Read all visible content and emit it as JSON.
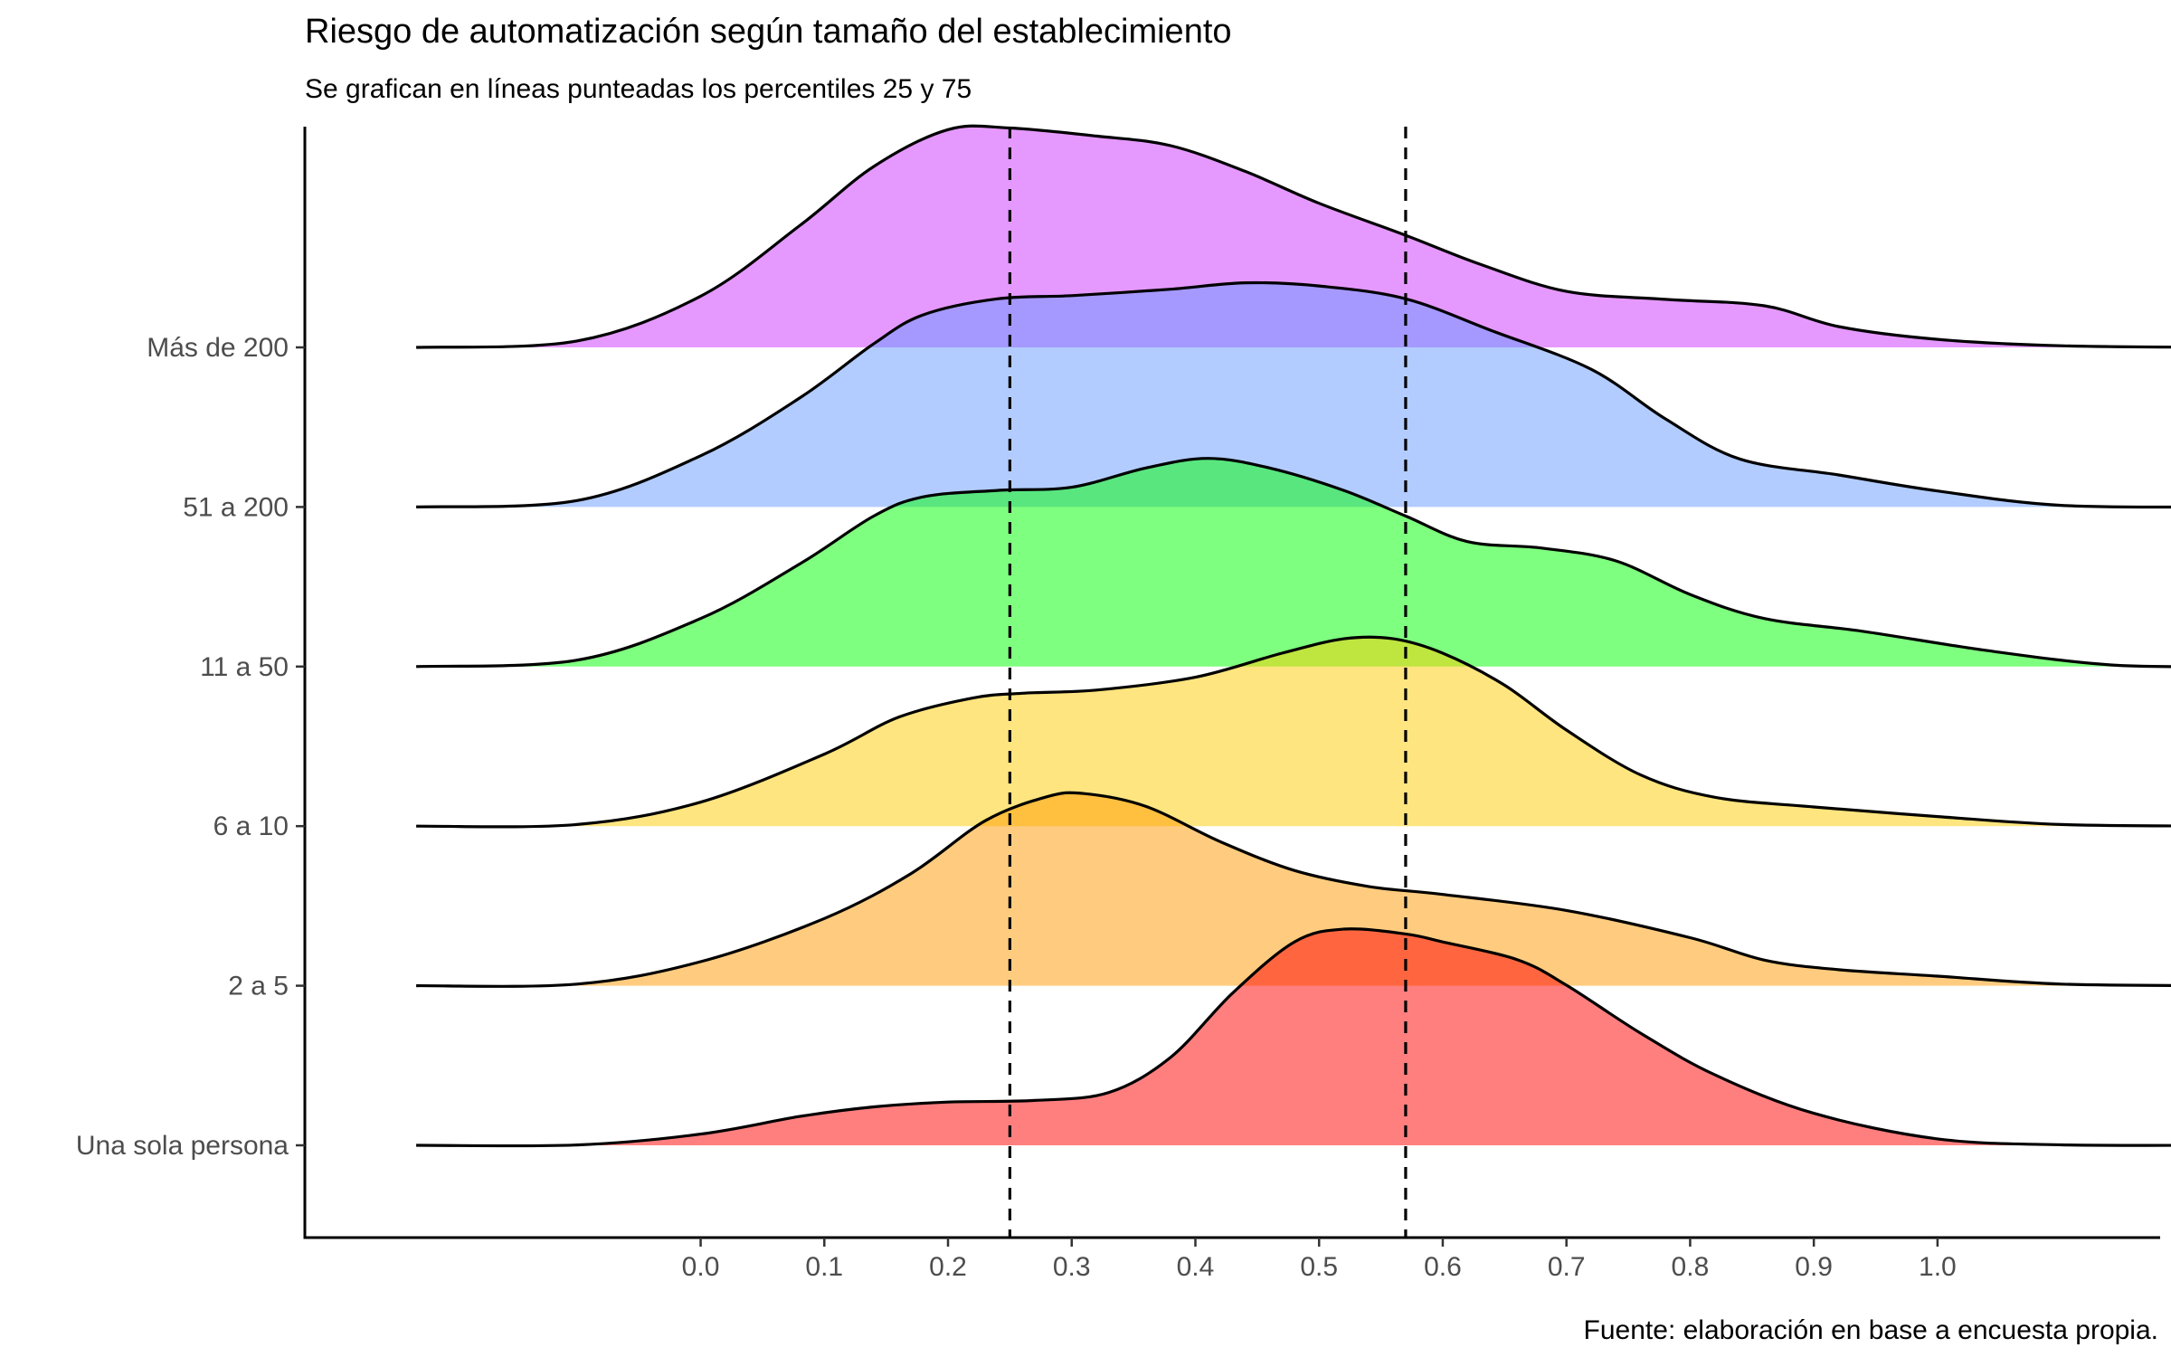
{
  "chart_data": {
    "type": "ridgeline",
    "title": "Riesgo de automatización según tamaño del establecimiento",
    "subtitle": "Se grafican en líneas punteadas los percentiles 25 y 75",
    "caption": "Fuente: elaboración en base a encuesta propia.",
    "xlabel": "",
    "ylabel": "",
    "x_ticks": [
      0.0,
      0.1,
      0.2,
      0.3,
      0.4,
      0.5,
      0.6,
      0.7,
      0.8,
      0.9,
      1.0
    ],
    "x_tick_labels": [
      "0.0",
      "0.1",
      "0.2",
      "0.3",
      "0.4",
      "0.5",
      "0.6",
      "0.7",
      "0.8",
      "0.9",
      "1.0"
    ],
    "xlim": [
      -0.32,
      1.18
    ],
    "density_range": [
      -0.23,
      1.23
    ],
    "reference_lines": [
      0.25,
      0.57
    ],
    "categories": [
      "Una sola persona",
      "2 a 5",
      "6 a 10",
      "11 a 50",
      "51 a 200",
      "Más de 200"
    ],
    "colors": {
      "Una sola persona": "#ff0000",
      "2 a 5": "#ff9900",
      "6 a 10": "#ffcc00",
      "11 a 50": "#00ff00",
      "51 a 200": "#6699ff",
      "Más de 200": "#cc33ff"
    },
    "fill_opacity": 0.5,
    "series": [
      {
        "name": "Una sola persona",
        "points": [
          [
            -0.23,
            0
          ],
          [
            -0.1,
            0.002
          ],
          [
            0.0,
            0.07
          ],
          [
            0.08,
            0.18
          ],
          [
            0.14,
            0.24
          ],
          [
            0.2,
            0.27
          ],
          [
            0.27,
            0.28
          ],
          [
            0.33,
            0.33
          ],
          [
            0.38,
            0.55
          ],
          [
            0.43,
            0.95
          ],
          [
            0.48,
            1.27
          ],
          [
            0.52,
            1.35
          ],
          [
            0.57,
            1.32
          ],
          [
            0.6,
            1.27
          ],
          [
            0.66,
            1.16
          ],
          [
            0.7,
            1.0
          ],
          [
            0.76,
            0.7
          ],
          [
            0.82,
            0.44
          ],
          [
            0.9,
            0.2
          ],
          [
            1.0,
            0.04
          ],
          [
            1.1,
            0.003
          ],
          [
            1.23,
            0
          ]
        ]
      },
      {
        "name": "2 a 5",
        "points": [
          [
            -0.23,
            0
          ],
          [
            -0.1,
            0.01
          ],
          [
            0.0,
            0.15
          ],
          [
            0.1,
            0.42
          ],
          [
            0.17,
            0.7
          ],
          [
            0.23,
            1.03
          ],
          [
            0.28,
            1.18
          ],
          [
            0.31,
            1.2
          ],
          [
            0.36,
            1.12
          ],
          [
            0.42,
            0.9
          ],
          [
            0.48,
            0.72
          ],
          [
            0.54,
            0.62
          ],
          [
            0.6,
            0.57
          ],
          [
            0.7,
            0.47
          ],
          [
            0.8,
            0.3
          ],
          [
            0.86,
            0.16
          ],
          [
            0.92,
            0.1
          ],
          [
            1.0,
            0.06
          ],
          [
            1.1,
            0.01
          ],
          [
            1.23,
            0
          ]
        ]
      },
      {
        "name": "6 a 10",
        "points": [
          [
            -0.23,
            0
          ],
          [
            -0.1,
            0.01
          ],
          [
            0.0,
            0.15
          ],
          [
            0.1,
            0.45
          ],
          [
            0.16,
            0.68
          ],
          [
            0.22,
            0.8
          ],
          [
            0.26,
            0.83
          ],
          [
            0.32,
            0.85
          ],
          [
            0.4,
            0.93
          ],
          [
            0.47,
            1.08
          ],
          [
            0.52,
            1.17
          ],
          [
            0.56,
            1.17
          ],
          [
            0.6,
            1.08
          ],
          [
            0.65,
            0.88
          ],
          [
            0.7,
            0.6
          ],
          [
            0.76,
            0.32
          ],
          [
            0.82,
            0.18
          ],
          [
            0.9,
            0.12
          ],
          [
            1.0,
            0.06
          ],
          [
            1.1,
            0.01
          ],
          [
            1.23,
            0
          ]
        ]
      },
      {
        "name": "11 a 50",
        "points": [
          [
            -0.23,
            0
          ],
          [
            -0.1,
            0.04
          ],
          [
            0.0,
            0.3
          ],
          [
            0.08,
            0.64
          ],
          [
            0.14,
            0.94
          ],
          [
            0.18,
            1.06
          ],
          [
            0.24,
            1.1
          ],
          [
            0.3,
            1.12
          ],
          [
            0.36,
            1.24
          ],
          [
            0.41,
            1.3
          ],
          [
            0.46,
            1.24
          ],
          [
            0.52,
            1.1
          ],
          [
            0.57,
            0.94
          ],
          [
            0.62,
            0.78
          ],
          [
            0.68,
            0.74
          ],
          [
            0.74,
            0.66
          ],
          [
            0.8,
            0.45
          ],
          [
            0.86,
            0.3
          ],
          [
            0.94,
            0.22
          ],
          [
            1.04,
            0.1
          ],
          [
            1.14,
            0.01
          ],
          [
            1.23,
            0
          ]
        ]
      },
      {
        "name": "51 a 200",
        "points": [
          [
            -0.23,
            0
          ],
          [
            -0.1,
            0.04
          ],
          [
            0.0,
            0.32
          ],
          [
            0.08,
            0.68
          ],
          [
            0.14,
            1.02
          ],
          [
            0.18,
            1.2
          ],
          [
            0.24,
            1.3
          ],
          [
            0.3,
            1.32
          ],
          [
            0.38,
            1.36
          ],
          [
            0.44,
            1.4
          ],
          [
            0.5,
            1.38
          ],
          [
            0.57,
            1.3
          ],
          [
            0.64,
            1.1
          ],
          [
            0.72,
            0.86
          ],
          [
            0.78,
            0.55
          ],
          [
            0.84,
            0.3
          ],
          [
            0.92,
            0.2
          ],
          [
            1.0,
            0.1
          ],
          [
            1.1,
            0.01
          ],
          [
            1.23,
            0
          ]
        ]
      },
      {
        "name": "Más de 200",
        "points": [
          [
            -0.23,
            0
          ],
          [
            -0.1,
            0.04
          ],
          [
            0.0,
            0.32
          ],
          [
            0.08,
            0.76
          ],
          [
            0.14,
            1.13
          ],
          [
            0.2,
            1.36
          ],
          [
            0.25,
            1.37
          ],
          [
            0.32,
            1.32
          ],
          [
            0.38,
            1.26
          ],
          [
            0.44,
            1.1
          ],
          [
            0.5,
            0.9
          ],
          [
            0.57,
            0.7
          ],
          [
            0.63,
            0.52
          ],
          [
            0.7,
            0.35
          ],
          [
            0.78,
            0.3
          ],
          [
            0.86,
            0.26
          ],
          [
            0.92,
            0.13
          ],
          [
            1.0,
            0.05
          ],
          [
            1.1,
            0.01
          ],
          [
            1.23,
            0
          ]
        ]
      }
    ]
  }
}
